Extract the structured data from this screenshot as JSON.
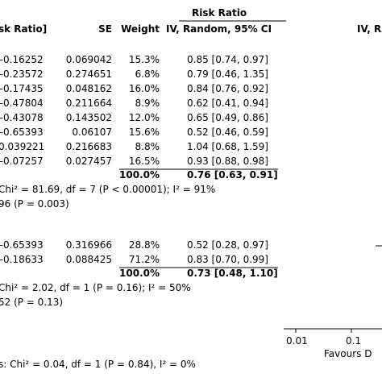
{
  "header": {
    "group_title": "Risk Ratio",
    "col_logrr": "sk Ratio]",
    "col_se": "SE",
    "col_weight": "Weight",
    "col_ci": "IV, Random, 95% CI",
    "col_plot": "IV, R"
  },
  "chart_data": {
    "type": "table",
    "subgroups": [
      {
        "rows": [
          {
            "log_rr": "–0.16252",
            "se": "0.069042",
            "weight": "15.3%",
            "ci": "0.85 [0.74, 0.97]"
          },
          {
            "log_rr": "–0.23572",
            "se": "0.274651",
            "weight": "6.8%",
            "ci": "0.79 [0.46, 1.35]"
          },
          {
            "log_rr": "–0.17435",
            "se": "0.048162",
            "weight": "16.0%",
            "ci": "0.84 [0.76, 0.92]"
          },
          {
            "log_rr": "–0.47804",
            "se": "0.211664",
            "weight": "8.9%",
            "ci": "0.62 [0.41, 0.94]"
          },
          {
            "log_rr": "–0.43078",
            "se": "0.143502",
            "weight": "12.0%",
            "ci": "0.65 [0.49, 0.86]"
          },
          {
            "log_rr": "–0.65393",
            "se": "0.06107",
            "weight": "15.6%",
            "ci": "0.52 [0.46, 0.59]"
          },
          {
            "log_rr": "0.039221",
            "se": "0.216683",
            "weight": "8.8%",
            "ci": "1.04 [0.68, 1.59]"
          },
          {
            "log_rr": "–0.07257",
            "se": "0.027457",
            "weight": "16.5%",
            "ci": "0.93 [0.88, 0.98]"
          }
        ],
        "total_weight": "100.0%",
        "total_ci": "0.76 [0.63, 0.91]",
        "heterogeneity": "Chi² = 81.69, df = 7 (P < 0.00001); I² = 91%",
        "overall_effect": "96 (P = 0.003)"
      },
      {
        "rows": [
          {
            "log_rr": "–0.65393",
            "se": "0.316966",
            "weight": "28.8%",
            "ci": "0.52 [0.28, 0.97]"
          },
          {
            "log_rr": "–0.18633",
            "se": "0.088425",
            "weight": "71.2%",
            "ci": "0.83 [0.70, 0.99]"
          }
        ],
        "total_weight": "100.0%",
        "total_ci": "0.73 [0.48, 1.10]",
        "heterogeneity": "Chi² = 2.02, df = 1 (P = 0.16); I² = 50%",
        "overall_effect": "52 (P = 0.13)"
      }
    ],
    "subgroup_differences": "s: Chi² = 0.04, df = 1 (P = 0.84), I² = 0%",
    "x_axis": {
      "scale": "log",
      "tick_labels": [
        "0.01",
        "0.1"
      ],
      "label": "Favours D"
    }
  }
}
